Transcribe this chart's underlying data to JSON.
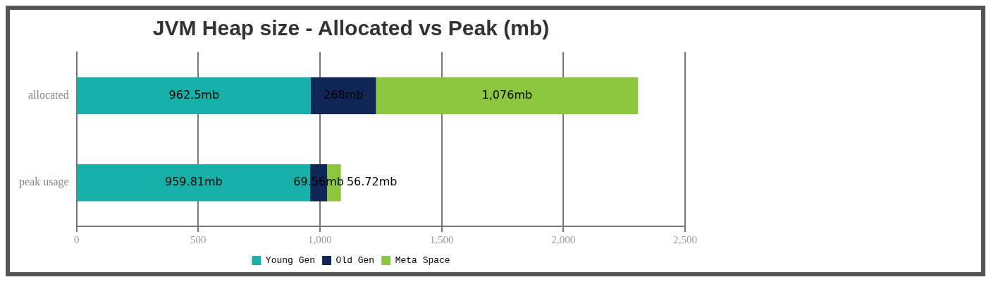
{
  "chart_data": {
    "type": "bar",
    "orientation": "horizontal",
    "stacked": true,
    "title": "JVM Heap size - Allocated vs Peak (mb)",
    "categories": [
      "allocated",
      "peak usage"
    ],
    "series": [
      {
        "name": "Young Gen",
        "color": "#16b0a8",
        "values": [
          962.5,
          959.81
        ],
        "value_labels": [
          "962.5mb",
          "959.81mb"
        ]
      },
      {
        "name": "Old Gen",
        "color": "#0f2657",
        "values": [
          268,
          69.56
        ],
        "value_labels": [
          "268mb",
          "69.56mb"
        ]
      },
      {
        "name": "Meta Space",
        "color": "#8dc63f",
        "values": [
          1076,
          56.72
        ],
        "value_labels": [
          "1,076mb",
          "56.72mb"
        ]
      }
    ],
    "xlim": [
      0,
      2500
    ],
    "xticks": [
      {
        "value": 0,
        "label": "0"
      },
      {
        "value": 500,
        "label": "500"
      },
      {
        "value": 1000,
        "label": "1,000"
      },
      {
        "value": 1500,
        "label": "1,500"
      },
      {
        "value": 2000,
        "label": "2,000"
      },
      {
        "value": 2500,
        "label": "2,500"
      }
    ],
    "grid": "x",
    "legend": "bottom"
  }
}
